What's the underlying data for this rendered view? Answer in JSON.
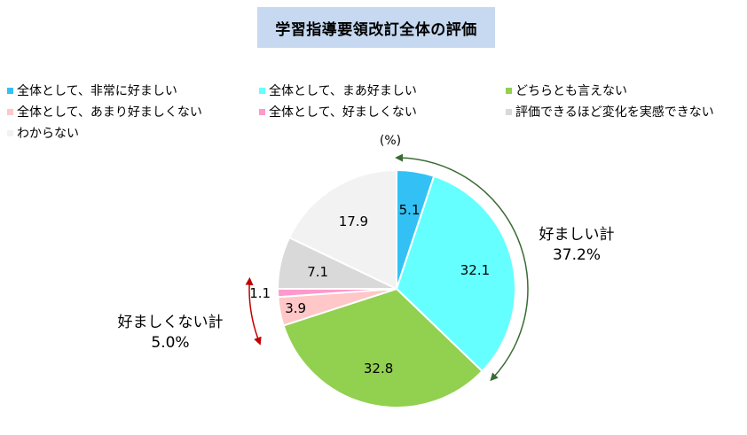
{
  "title": "学習指導要領改訂全体の評価",
  "unit_label": "(%)",
  "legend": [
    {
      "label": "全体として、非常に好ましい",
      "color": "#33c1f5"
    },
    {
      "label": "全体として、まあ好ましい",
      "color": "#66ffff"
    },
    {
      "label": "どちらとも言えない",
      "color": "#92d050"
    },
    {
      "label": "全体として、あまり好ましくない",
      "color": "#ffc7c7"
    },
    {
      "label": "全体として、好ましくない",
      "color": "#ff99cc"
    },
    {
      "label": "評価できるほど変化を実感できない",
      "color": "#d9d9d9"
    },
    {
      "label": "わからない",
      "color": "#f2f2f2"
    }
  ],
  "chart_data": {
    "type": "pie",
    "unit": "%",
    "slices": [
      {
        "label": "全体として、非常に好ましい",
        "value": 5.1,
        "display": "5.1",
        "color": "#33c1f5"
      },
      {
        "label": "全体として、まあ好ましい",
        "value": 32.1,
        "display": "32.1",
        "color": "#66ffff"
      },
      {
        "label": "どちらとも言えない",
        "value": 32.8,
        "display": "32.8",
        "color": "#92d050"
      },
      {
        "label": "全体として、あまり好ましくない",
        "value": 3.9,
        "display": "3.9",
        "color": "#ffc7c7"
      },
      {
        "label": "全体として、好ましくない",
        "value": 1.1,
        "display": "1.1",
        "color": "#ff99cc"
      },
      {
        "label": "評価できるほど変化を実感できない",
        "value": 7.1,
        "display": "7.1",
        "color": "#d9d9d9"
      },
      {
        "label": "わからない",
        "value": 17.9,
        "display": "17.9",
        "color": "#f2f2f2"
      }
    ],
    "annotations": {
      "positive": {
        "label": "好ましい計",
        "value": "37.2%",
        "color": "#3a6b34"
      },
      "negative": {
        "label": "好ましくない計",
        "value": "5.0%",
        "color": "#c00000"
      }
    }
  }
}
